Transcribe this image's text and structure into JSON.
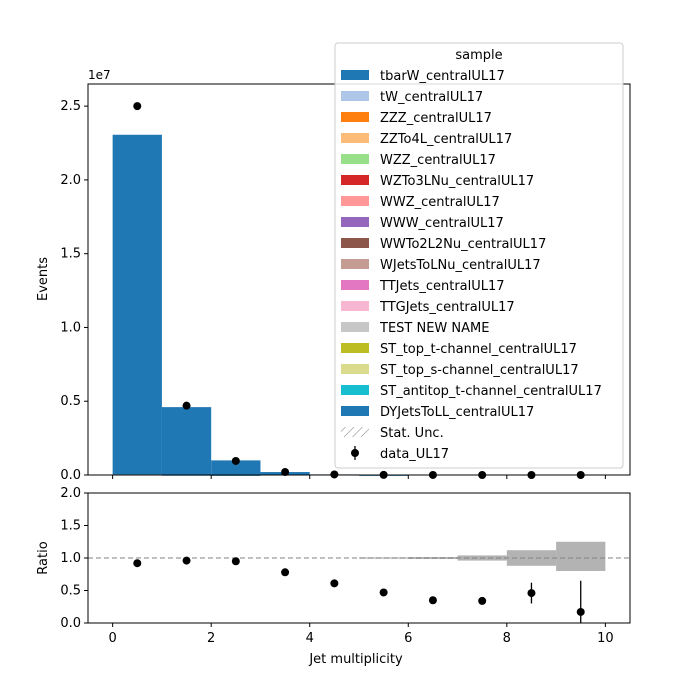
{
  "chart_data": {
    "type": "bar",
    "stacked": true,
    "xlabel": "Jet multiplicity",
    "x_bin_edges": [
      0,
      1,
      2,
      3,
      4,
      5,
      6,
      7,
      8,
      9,
      10
    ],
    "xlim": [
      -0.5,
      10.5
    ],
    "x_ticks": [
      0,
      2,
      4,
      6,
      8,
      10
    ],
    "main": {
      "ylabel": "Events",
      "offset_label": "1e7",
      "ylim": [
        0,
        2.65
      ],
      "y_ticks": [
        "0.0",
        "0.5",
        "1.0",
        "1.5",
        "2.0",
        "2.5"
      ],
      "series": [
        {
          "name": "tbarW_centralUL17",
          "color": "#1f77b4",
          "values": [
            0.006,
            0.002,
            0.001,
            0,
            0,
            0,
            0,
            0,
            0,
            0
          ]
        },
        {
          "name": "DYJetsToLL_centralUL17",
          "color": "#1f77b4",
          "values": [
            2.3,
            0.458,
            0.098,
            0.02,
            0.004,
            0.001,
            0,
            0,
            0,
            0
          ]
        }
      ],
      "data": {
        "name": "data_UL17",
        "x": [
          0.5,
          1.5,
          2.5,
          3.5,
          4.5,
          5.5,
          6.5,
          7.5,
          8.5,
          9.5
        ],
        "y": [
          2.5,
          0.47,
          0.095,
          0.02,
          0.0035,
          0.0008,
          0.0002,
          5e-05,
          1e-05,
          3e-06
        ]
      }
    },
    "ratio": {
      "ylabel": "Ratio",
      "ylim": [
        0,
        2
      ],
      "y_ticks": [
        "0.0",
        "0.5",
        "1.0",
        "1.5",
        "2.0"
      ],
      "reference_line": 1.0,
      "points": [
        {
          "x": 0.5,
          "y": 0.92,
          "err": 0
        },
        {
          "x": 1.5,
          "y": 0.96,
          "err": 0
        },
        {
          "x": 2.5,
          "y": 0.95,
          "err": 0
        },
        {
          "x": 3.5,
          "y": 0.78,
          "err": 0
        },
        {
          "x": 4.5,
          "y": 0.61,
          "err": 0
        },
        {
          "x": 5.5,
          "y": 0.47,
          "err": 0
        },
        {
          "x": 6.5,
          "y": 0.35,
          "err": 0
        },
        {
          "x": 7.5,
          "y": 0.34,
          "err": 0.05
        },
        {
          "x": 8.5,
          "y": 0.46,
          "err": 0.16
        },
        {
          "x": 9.5,
          "y": 0.17,
          "err": 0.48
        }
      ],
      "unc_bands": [
        {
          "x0": 5,
          "x1": 6,
          "lo": 0.99,
          "hi": 1.01
        },
        {
          "x0": 6,
          "x1": 7,
          "lo": 0.985,
          "hi": 1.015
        },
        {
          "x0": 7,
          "x1": 8,
          "lo": 0.96,
          "hi": 1.04
        },
        {
          "x0": 8,
          "x1": 9,
          "lo": 0.88,
          "hi": 1.12
        },
        {
          "x0": 9,
          "x1": 10,
          "lo": 0.8,
          "hi": 1.25
        }
      ]
    },
    "legend": {
      "title": "sample",
      "placement": "top-right",
      "entries": [
        {
          "label": "tbarW_centralUL17",
          "kind": "patch",
          "color": "#1f77b4"
        },
        {
          "label": "tW_centralUL17",
          "kind": "patch",
          "color": "#aec7e8"
        },
        {
          "label": "ZZZ_centralUL17",
          "kind": "patch",
          "color": "#ff7f0e"
        },
        {
          "label": "ZZTo4L_centralUL17",
          "kind": "patch",
          "color": "#ffbb78"
        },
        {
          "label": "WZZ_centralUL17",
          "kind": "patch",
          "color": "#98df8a"
        },
        {
          "label": "WZTo3LNu_centralUL17",
          "kind": "patch",
          "color": "#d62728"
        },
        {
          "label": "WWZ_centralUL17",
          "kind": "patch",
          "color": "#ff9896"
        },
        {
          "label": "WWW_centralUL17",
          "kind": "patch",
          "color": "#9467bd"
        },
        {
          "label": "WWTo2L2Nu_centralUL17",
          "kind": "patch",
          "color": "#8c564b"
        },
        {
          "label": "WJetsToLNu_centralUL17",
          "kind": "patch",
          "color": "#c49c94"
        },
        {
          "label": "TTJets_centralUL17",
          "kind": "patch",
          "color": "#e377c2"
        },
        {
          "label": "TTGJets_centralUL17",
          "kind": "patch",
          "color": "#f7b6d2"
        },
        {
          "label": "TEST NEW NAME",
          "kind": "patch",
          "color": "#c7c7c7"
        },
        {
          "label": "ST_top_t-channel_centralUL17",
          "kind": "patch",
          "color": "#bcbd22"
        },
        {
          "label": "ST_top_s-channel_centralUL17",
          "kind": "patch",
          "color": "#dbdb8d"
        },
        {
          "label": "ST_antitop_t-channel_centralUL17",
          "kind": "patch",
          "color": "#17becf"
        },
        {
          "label": "DYJetsToLL_centralUL17",
          "kind": "patch",
          "color": "#1f77b4"
        },
        {
          "label": "Stat. Unc.",
          "kind": "hatch",
          "color": "#888888"
        },
        {
          "label": "data_UL17",
          "kind": "errorbar",
          "color": "#000000"
        }
      ]
    }
  }
}
